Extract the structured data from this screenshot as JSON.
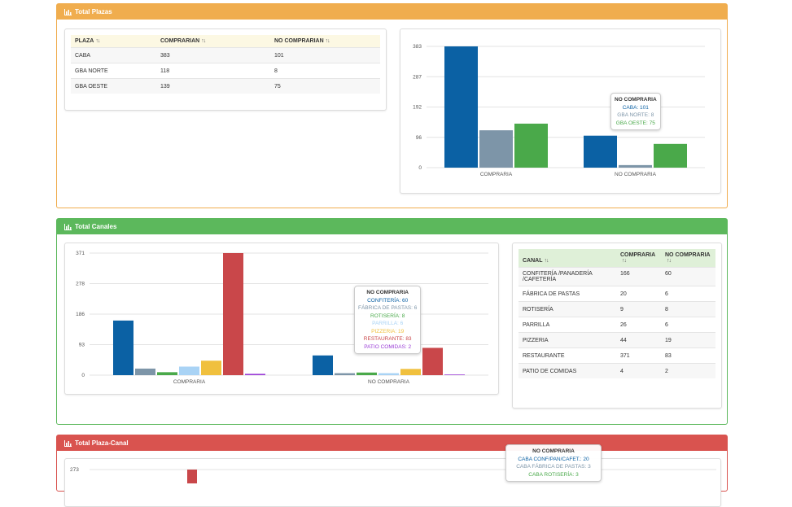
{
  "colors": {
    "blue": "#0b61a4",
    "gray": "#7d95a8",
    "green": "#4aa94a",
    "lightblue": "#a9d3f5",
    "yellow": "#f0c03e",
    "red": "#c9474a",
    "purple": "#9a3cd6"
  },
  "panels": {
    "plazas": {
      "title": "Total Plazas"
    },
    "canales": {
      "title": "Total Canales"
    },
    "plaza_canal": {
      "title": "Total Plaza-Canal"
    }
  },
  "plazas_table": {
    "headers": [
      "PLAZA",
      "COMPRARIAN",
      "NO COMPRARIAN"
    ],
    "rows": [
      [
        "CABA",
        "383",
        "101"
      ],
      [
        "GBA NORTE",
        "118",
        "8"
      ],
      [
        "GBA OESTE",
        "139",
        "75"
      ]
    ]
  },
  "canales_table": {
    "headers": [
      "CANAL",
      "COMPRARIA",
      "NO COMPRARIA"
    ],
    "rows": [
      [
        "CONFITERÍA /PANADERÍA /CAFETERÍA",
        "166",
        "60"
      ],
      [
        "FÁBRICA DE PASTAS",
        "20",
        "6"
      ],
      [
        "ROTISERÍA",
        "9",
        "8"
      ],
      [
        "PARRILLA",
        "26",
        "6"
      ],
      [
        "PIZZERIA",
        "44",
        "19"
      ],
      [
        "RESTAURANTE",
        "371",
        "83"
      ],
      [
        "PATIO DE COMIDAS",
        "4",
        "2"
      ]
    ]
  },
  "tooltips": {
    "plazas": {
      "title": "NO COMPRARIA",
      "lines": [
        "CABA: 101",
        "GBA NORTE: 8",
        "GBA OESTE: 75"
      ]
    },
    "canales": {
      "title": "NO COMPRARIA",
      "lines": [
        "CONFITERÍA: 60",
        "FÁBRICA DE PASTAS: 6",
        "ROTISERÍA: 8",
        "PARRILLA: 6",
        "PIZZERIA: 19",
        "RESTAURANTE: 83",
        "PATIO COMIDAS: 2"
      ]
    },
    "plaza_canal": {
      "title": "NO COMPRARIA",
      "lines": [
        "CABA CONF/PAN/CAFET.: 20",
        "CABA FÁBRICA DE PASTAS: 3",
        "CABA ROTISERÍA: 3"
      ]
    }
  },
  "chart_data": [
    {
      "type": "bar",
      "categories": [
        "COMPRARIA",
        "NO COMPRARIA"
      ],
      "ticks": [
        "0",
        "96",
        "192",
        "287",
        "383"
      ],
      "ylim": [
        0,
        383
      ],
      "series": [
        {
          "values": [
            383,
            101
          ],
          "color": "#0b61a4"
        },
        {
          "values": [
            118,
            8
          ],
          "color": "#7d95a8"
        },
        {
          "values": [
            139,
            75
          ],
          "color": "#4aa94a"
        }
      ]
    },
    {
      "type": "bar",
      "categories": [
        "COMPRARIA",
        "NO COMPRARIA"
      ],
      "ticks": [
        "0",
        "93",
        "186",
        "278",
        "371"
      ],
      "ylim": [
        0,
        371
      ],
      "series": [
        {
          "values": [
            166,
            60
          ],
          "color": "#0b61a4"
        },
        {
          "values": [
            20,
            6
          ],
          "color": "#7d95a8"
        },
        {
          "values": [
            9,
            8
          ],
          "color": "#4aa94a"
        },
        {
          "values": [
            26,
            6
          ],
          "color": "#a9d3f5"
        },
        {
          "values": [
            44,
            19
          ],
          "color": "#f0c03e"
        },
        {
          "values": [
            371,
            83
          ],
          "color": "#c9474a"
        },
        {
          "values": [
            4,
            2
          ],
          "color": "#9a3cd6"
        }
      ]
    },
    {
      "type": "bar",
      "ticks": [
        "273"
      ],
      "ylim": [
        0,
        273
      ]
    }
  ]
}
